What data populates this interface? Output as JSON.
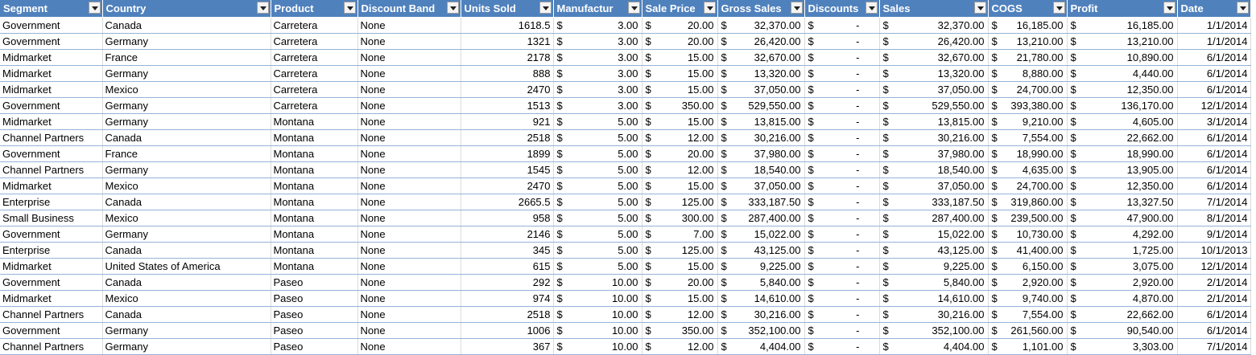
{
  "columns": [
    {
      "key": "segment",
      "label": "Segment",
      "type": "text"
    },
    {
      "key": "country",
      "label": "Country",
      "type": "text"
    },
    {
      "key": "product",
      "label": "Product",
      "type": "text"
    },
    {
      "key": "discount_band",
      "label": "Discount Band",
      "type": "text"
    },
    {
      "key": "units_sold",
      "label": "Units Sold",
      "type": "num"
    },
    {
      "key": "manufacturing_price",
      "label": "Manufactur",
      "type": "acc"
    },
    {
      "key": "sale_price",
      "label": "Sale Price",
      "type": "acc"
    },
    {
      "key": "gross_sales",
      "label": "Gross Sales",
      "type": "acc"
    },
    {
      "key": "discounts",
      "label": "Discounts",
      "type": "acc"
    },
    {
      "key": "sales",
      "label": "Sales",
      "type": "acc"
    },
    {
      "key": "cogs",
      "label": "COGS",
      "type": "acc"
    },
    {
      "key": "profit",
      "label": "Profit",
      "type": "acc"
    },
    {
      "key": "date",
      "label": "Date",
      "type": "num"
    }
  ],
  "currency_symbol": "$",
  "rows": [
    [
      "Government",
      "Canada",
      "Carretera",
      "None",
      "1618.5",
      "3.00",
      "20.00",
      "32,370.00",
      "-",
      "32,370.00",
      "16,185.00",
      "16,185.00",
      "1/1/2014"
    ],
    [
      "Government",
      "Germany",
      "Carretera",
      "None",
      "1321",
      "3.00",
      "20.00",
      "26,420.00",
      "-",
      "26,420.00",
      "13,210.00",
      "13,210.00",
      "1/1/2014"
    ],
    [
      "Midmarket",
      "France",
      "Carretera",
      "None",
      "2178",
      "3.00",
      "15.00",
      "32,670.00",
      "-",
      "32,670.00",
      "21,780.00",
      "10,890.00",
      "6/1/2014"
    ],
    [
      "Midmarket",
      "Germany",
      "Carretera",
      "None",
      "888",
      "3.00",
      "15.00",
      "13,320.00",
      "-",
      "13,320.00",
      "8,880.00",
      "4,440.00",
      "6/1/2014"
    ],
    [
      "Midmarket",
      "Mexico",
      "Carretera",
      "None",
      "2470",
      "3.00",
      "15.00",
      "37,050.00",
      "-",
      "37,050.00",
      "24,700.00",
      "12,350.00",
      "6/1/2014"
    ],
    [
      "Government",
      "Germany",
      "Carretera",
      "None",
      "1513",
      "3.00",
      "350.00",
      "529,550.00",
      "-",
      "529,550.00",
      "393,380.00",
      "136,170.00",
      "12/1/2014"
    ],
    [
      "Midmarket",
      "Germany",
      "Montana",
      "None",
      "921",
      "5.00",
      "15.00",
      "13,815.00",
      "-",
      "13,815.00",
      "9,210.00",
      "4,605.00",
      "3/1/2014"
    ],
    [
      "Channel Partners",
      "Canada",
      "Montana",
      "None",
      "2518",
      "5.00",
      "12.00",
      "30,216.00",
      "-",
      "30,216.00",
      "7,554.00",
      "22,662.00",
      "6/1/2014"
    ],
    [
      "Government",
      "France",
      "Montana",
      "None",
      "1899",
      "5.00",
      "20.00",
      "37,980.00",
      "-",
      "37,980.00",
      "18,990.00",
      "18,990.00",
      "6/1/2014"
    ],
    [
      "Channel Partners",
      "Germany",
      "Montana",
      "None",
      "1545",
      "5.00",
      "12.00",
      "18,540.00",
      "-",
      "18,540.00",
      "4,635.00",
      "13,905.00",
      "6/1/2014"
    ],
    [
      "Midmarket",
      "Mexico",
      "Montana",
      "None",
      "2470",
      "5.00",
      "15.00",
      "37,050.00",
      "-",
      "37,050.00",
      "24,700.00",
      "12,350.00",
      "6/1/2014"
    ],
    [
      "Enterprise",
      "Canada",
      "Montana",
      "None",
      "2665.5",
      "5.00",
      "125.00",
      "333,187.50",
      "-",
      "333,187.50",
      "319,860.00",
      "13,327.50",
      "7/1/2014"
    ],
    [
      "Small Business",
      "Mexico",
      "Montana",
      "None",
      "958",
      "5.00",
      "300.00",
      "287,400.00",
      "-",
      "287,400.00",
      "239,500.00",
      "47,900.00",
      "8/1/2014"
    ],
    [
      "Government",
      "Germany",
      "Montana",
      "None",
      "2146",
      "5.00",
      "7.00",
      "15,022.00",
      "-",
      "15,022.00",
      "10,730.00",
      "4,292.00",
      "9/1/2014"
    ],
    [
      "Enterprise",
      "Canada",
      "Montana",
      "None",
      "345",
      "5.00",
      "125.00",
      "43,125.00",
      "-",
      "43,125.00",
      "41,400.00",
      "1,725.00",
      "10/1/2013"
    ],
    [
      "Midmarket",
      "United States of America",
      "Montana",
      "None",
      "615",
      "5.00",
      "15.00",
      "9,225.00",
      "-",
      "9,225.00",
      "6,150.00",
      "3,075.00",
      "12/1/2014"
    ],
    [
      "Government",
      "Canada",
      "Paseo",
      "None",
      "292",
      "10.00",
      "20.00",
      "5,840.00",
      "-",
      "5,840.00",
      "2,920.00",
      "2,920.00",
      "2/1/2014"
    ],
    [
      "Midmarket",
      "Mexico",
      "Paseo",
      "None",
      "974",
      "10.00",
      "15.00",
      "14,610.00",
      "-",
      "14,610.00",
      "9,740.00",
      "4,870.00",
      "2/1/2014"
    ],
    [
      "Channel Partners",
      "Canada",
      "Paseo",
      "None",
      "2518",
      "10.00",
      "12.00",
      "30,216.00",
      "-",
      "30,216.00",
      "7,554.00",
      "22,662.00",
      "6/1/2014"
    ],
    [
      "Government",
      "Germany",
      "Paseo",
      "None",
      "1006",
      "10.00",
      "350.00",
      "352,100.00",
      "-",
      "352,100.00",
      "261,560.00",
      "90,540.00",
      "6/1/2014"
    ],
    [
      "Channel Partners",
      "Germany",
      "Paseo",
      "None",
      "367",
      "10.00",
      "12.00",
      "4,404.00",
      "-",
      "4,404.00",
      "1,101.00",
      "3,303.00",
      "7/1/2014"
    ]
  ]
}
